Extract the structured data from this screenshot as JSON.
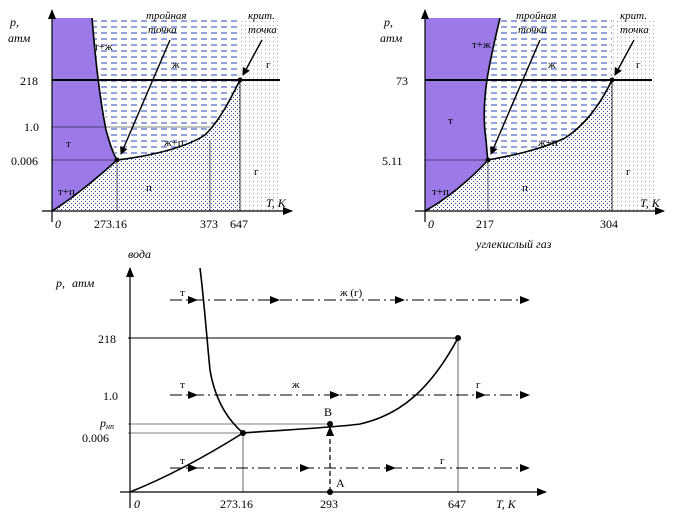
{
  "colors": {
    "solid": "#9B79E6",
    "liquid_dash": "#2A47B5",
    "vapor_dot": "#2A47B5",
    "gas_dot": "#A9B0C8",
    "line": "#000000"
  },
  "water_diagram": {
    "y_label": "p,",
    "y_unit": "атм",
    "x_label": "T, K",
    "origin": "0",
    "y_ticks": [
      "218",
      "1.0",
      "0.006"
    ],
    "x_ticks": [
      "273.16",
      "373",
      "647"
    ],
    "ann_triple_1": "тройная",
    "ann_triple_2": "точка",
    "ann_crit_1": "крит.",
    "ann_crit_2": "точка",
    "regions": {
      "solid_liquid": "т+ж",
      "liquid": "ж",
      "gas": "г",
      "solid": "т",
      "liquid_vapor": "ж+п",
      "vapor": "п",
      "gas_low": "г",
      "solid_vapor": "т+п"
    }
  },
  "co2_diagram": {
    "y_label": "p,",
    "y_unit": "атм",
    "x_label": "T, K",
    "origin": "0",
    "y_ticks": [
      "73",
      "5.11"
    ],
    "x_ticks": [
      "217",
      "304"
    ],
    "ann_triple_1": "тройная",
    "ann_triple_2": "точка",
    "ann_crit_1": "крит.",
    "ann_crit_2": "точка",
    "caption": "углекислый газ",
    "regions": {
      "solid_liquid": "т+ж",
      "liquid": "ж",
      "gas": "г",
      "solid": "т",
      "liquid_vapor": "ж+п",
      "vapor": "п",
      "gas_low": "г",
      "solid_vapor": "т+п"
    }
  },
  "water_process": {
    "caption": "вода",
    "y_label": "p,",
    "y_unit": "атм",
    "x_label": "T, K",
    "origin": "0",
    "y_ticks": [
      "218",
      "1.0",
      "0.006"
    ],
    "p_np": "p",
    "p_np_sub": "нп",
    "x_ticks": [
      "273.16",
      "293",
      "647"
    ],
    "point_a": "A",
    "point_b": "B",
    "top_line": {
      "left": "т",
      "right": "ж (г)"
    },
    "mid_line": {
      "left": "т",
      "center": "ж",
      "right": "г"
    },
    "low_line": {
      "left": "т",
      "right": "г"
    }
  }
}
